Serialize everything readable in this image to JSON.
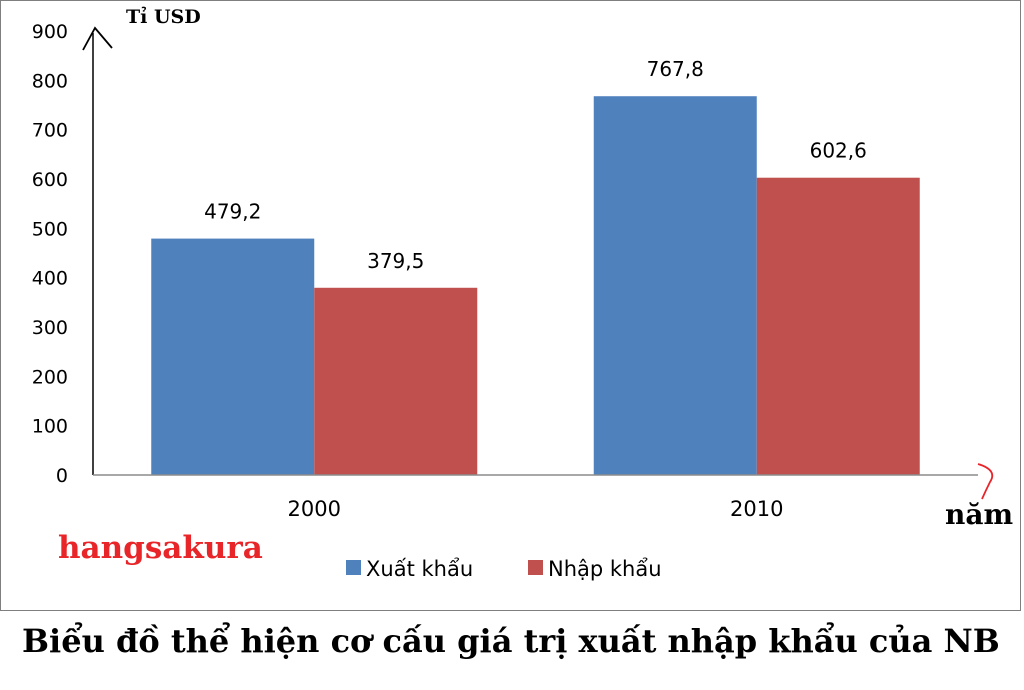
{
  "chart_data": {
    "type": "bar",
    "title": "Biểu đồ thể hiện cơ cấu giá trị xuất nhập khẩu của NB",
    "ylabel": "Tỉ USD",
    "xlabel": "năm",
    "categories": [
      "2000",
      "2010"
    ],
    "series": [
      {
        "name": "Xuất  khẩu",
        "values": [
          479.2,
          767.8
        ],
        "labels": [
          "479,2",
          "767,8"
        ],
        "color": "#4f81bd"
      },
      {
        "name": "Nhập  khẩu",
        "values": [
          379.5,
          602.6
        ],
        "labels": [
          "379,5",
          "602,6"
        ],
        "color": "#c0504d"
      }
    ],
    "ylim": [
      0,
      900
    ],
    "yticks": [
      "0",
      "100",
      "200",
      "300",
      "400",
      "500",
      "600",
      "700",
      "800",
      "900"
    ],
    "grid": false,
    "legend_position": "bottom"
  },
  "watermark": "hangsakura",
  "watermark_color": "#e8262a"
}
